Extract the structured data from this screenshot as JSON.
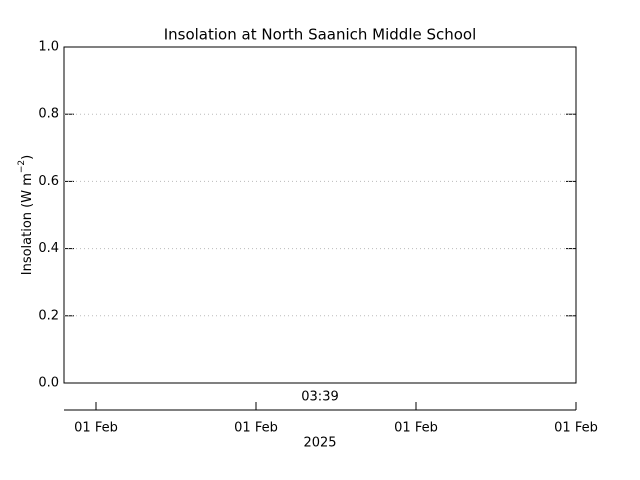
{
  "chart_data": {
    "type": "line",
    "title": "Insolation at North Saanich Middle School",
    "ylabel": {
      "text": "Insolation (W m",
      "superscript": "−2",
      "closing": ")"
    },
    "ylim": [
      0,
      1
    ],
    "yticks": [
      {
        "value": 0,
        "label": "0.0"
      },
      0.2,
      0.4,
      0.6,
      0.8,
      {
        "value": 1,
        "label": "1.0"
      }
    ],
    "grid": true,
    "time_label": "03:39",
    "categories": [
      "01 Feb",
      "01 Feb",
      "01 Feb",
      "01 Feb"
    ],
    "xlabel": "2025",
    "series": []
  }
}
